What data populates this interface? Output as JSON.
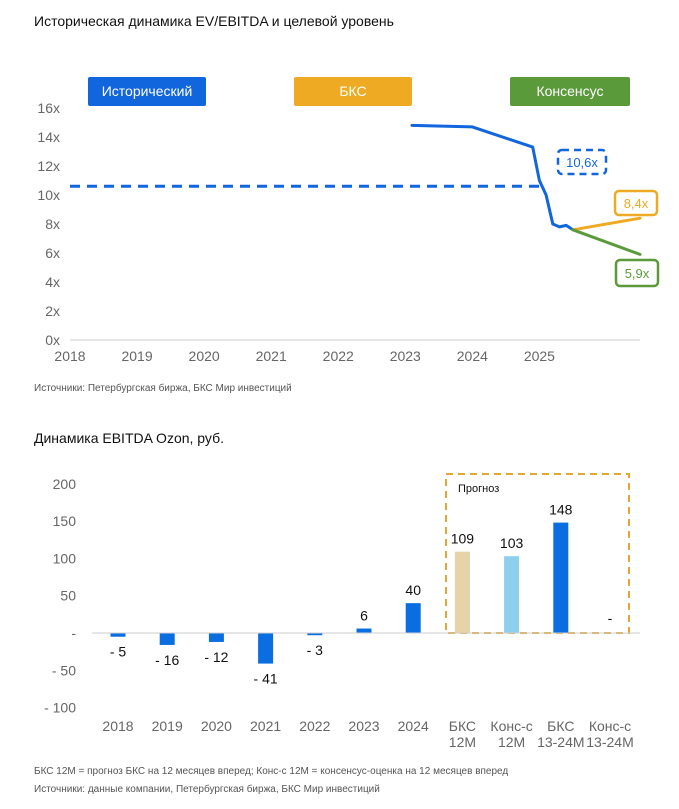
{
  "chart_data": [
    {
      "type": "line",
      "title": "Историческая динамика EV/EBITDA и целевой уровень",
      "y_ticks": [
        "0x",
        "2x",
        "4x",
        "6x",
        "8x",
        "10x",
        "12x",
        "14x",
        "16x"
      ],
      "x_ticks": [
        "2018",
        "2019",
        "2020",
        "2021",
        "2022",
        "2023",
        "2024",
        "2025"
      ],
      "ylim": [
        0,
        16
      ],
      "xlim": [
        2018,
        2026.5
      ],
      "legend_placement": "top",
      "legend": [
        {
          "label": "Исторический",
          "color": "#1166dd"
        },
        {
          "label": "БКС",
          "color": "#eeaa22"
        },
        {
          "label": "Консенсус",
          "color": "#5a9a3a"
        }
      ],
      "series": [
        {
          "name": "Исторический",
          "color": "#1166dd",
          "x": [
            2023.1,
            2024.0,
            2024.9,
            2025.0,
            2025.1,
            2025.2,
            2025.3,
            2025.4,
            2025.5
          ],
          "y": [
            14.8,
            14.7,
            13.3,
            11.0,
            10.0,
            8.0,
            7.8,
            7.9,
            7.6
          ]
        },
        {
          "name": "БКС",
          "color": "#eeaa22",
          "x": [
            2025.5,
            2026.5
          ],
          "y": [
            7.6,
            8.4
          ]
        },
        {
          "name": "Консенсус",
          "color": "#5a9a3a",
          "x": [
            2025.5,
            2026.5
          ],
          "y": [
            7.6,
            5.9
          ]
        }
      ],
      "reference_line": {
        "value": 10.6,
        "color": "#1166dd",
        "style": "dashed"
      },
      "annotations": [
        {
          "text": "10,6x",
          "value": 10.6,
          "color": "#1166dd",
          "style": "dashed"
        },
        {
          "text": "8,4x",
          "value": 8.4,
          "color": "#eeaa22"
        },
        {
          "text": "5,9x",
          "value": 5.9,
          "color": "#5a9a3a"
        }
      ],
      "source": "Источники: Петербургская биржа, БКС Мир инвестиций"
    },
    {
      "type": "bar",
      "title": "Динамика EBITDA Ozon, руб.",
      "categories": [
        [
          "2018"
        ],
        [
          "2019"
        ],
        [
          "2020"
        ],
        [
          "2021"
        ],
        [
          "2022"
        ],
        [
          "2023"
        ],
        [
          "2024"
        ],
        [
          "БКС",
          "12М"
        ],
        [
          "Конс-с",
          "12М"
        ],
        [
          "БКС",
          "13-24М"
        ],
        [
          "Конс-с",
          "13-24М"
        ]
      ],
      "values": [
        -5,
        -16,
        -12,
        -41,
        -3,
        6,
        40,
        109,
        103,
        148,
        0
      ],
      "data_labels": [
        "- 5",
        "- 16",
        "- 12",
        "- 41",
        "- 3",
        "6",
        "40",
        "109",
        "103",
        "148",
        "-"
      ],
      "colors": [
        "#0a6ee0",
        "#0a6ee0",
        "#0a6ee0",
        "#0a6ee0",
        "#0a6ee0",
        "#0a6ee0",
        "#0a6ee0",
        "#e6d3a8",
        "#8ed0ec",
        "#0a6ee0",
        "#0a6ee0"
      ],
      "y_ticks": [
        "- 100",
        "- 50",
        "-",
        "50",
        "100",
        "150",
        "200"
      ],
      "ylim": [
        -100,
        200
      ],
      "forecast_box_label": "Прогноз",
      "note": "БКС 12М = прогноз БКС на 12 месяцев вперед; Конс-с 12М = консенсус-оценка на 12 месяцев вперед",
      "source": "Источники: данные компании, Петербургская биржа, БКС Мир инвестиций"
    }
  ]
}
